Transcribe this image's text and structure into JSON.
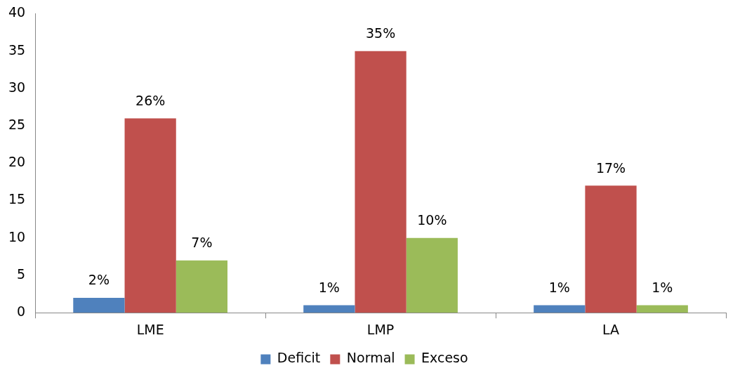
{
  "chart_data": {
    "type": "bar",
    "categories": [
      "LME",
      "LMP",
      "LA"
    ],
    "series": [
      {
        "name": "Deficit",
        "color": "#4f81bd",
        "values": [
          2,
          1,
          1
        ],
        "value_labels": [
          "2%",
          "1%",
          "1%"
        ]
      },
      {
        "name": "Normal",
        "color": "#c0504d",
        "values": [
          26,
          35,
          17
        ],
        "value_labels": [
          "26%",
          "35%",
          "17%"
        ]
      },
      {
        "name": "Exceso",
        "color": "#9bbb59",
        "values": [
          7,
          10,
          1
        ],
        "value_labels": [
          "7%",
          "10%",
          "1%"
        ]
      }
    ],
    "ylim": [
      0,
      40
    ],
    "yticks": [
      0,
      5,
      10,
      15,
      20,
      25,
      30,
      35,
      40
    ],
    "grid": false,
    "legend": "bottom"
  }
}
